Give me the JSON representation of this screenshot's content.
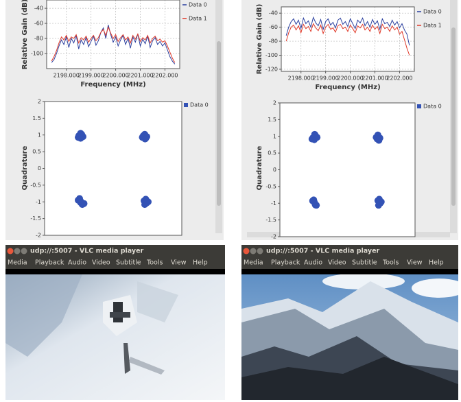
{
  "panels": [
    {
      "spectrum": {
        "type": "line",
        "ylabel": "Relative Gain (dB)",
        "xlabel": "Frequency (MHz)",
        "x": [
          2197.4,
          2197.5,
          2197.6,
          2197.7,
          2197.8,
          2197.9,
          2198.0,
          2198.1,
          2198.2,
          2198.3,
          2198.4,
          2198.5,
          2198.6,
          2198.7,
          2198.8,
          2198.9,
          2199.0,
          2199.1,
          2199.2,
          2199.3,
          2199.4,
          2199.5,
          2199.6,
          2199.7,
          2199.8,
          2199.9,
          2200.0,
          2200.1,
          2200.2,
          2200.3,
          2200.4,
          2200.5,
          2200.6,
          2200.7,
          2200.8,
          2200.9,
          2201.0,
          2201.1,
          2201.2,
          2201.3,
          2201.4,
          2201.5,
          2201.6,
          2201.7,
          2201.8,
          2201.9,
          2202.0,
          2202.1,
          2202.2,
          2202.3,
          2202.4
        ],
        "series": [
          {
            "name": "Data 0",
            "color": "#2a3f9e",
            "values": [
              -112,
              -108,
              -100,
              -90,
              -82,
              -88,
              -78,
              -92,
              -80,
              -86,
              -76,
              -94,
              -82,
              -88,
              -79,
              -91,
              -84,
              -77,
              -89,
              -83,
              -72,
              -66,
              -80,
              -62,
              -75,
              -85,
              -78,
              -90,
              -82,
              -76,
              -88,
              -80,
              -93,
              -78,
              -85,
              -74,
              -90,
              -81,
              -87,
              -77,
              -92,
              -83,
              -79,
              -88,
              -84,
              -90,
              -86,
              -95,
              -104,
              -110,
              -114
            ]
          },
          {
            "name": "Data 1",
            "color": "#e03a2a",
            "values": [
              -110,
              -104,
              -96,
              -86,
              -78,
              -82,
              -76,
              -84,
              -78,
              -80,
              -75,
              -86,
              -79,
              -82,
              -77,
              -85,
              -80,
              -76,
              -83,
              -79,
              -72,
              -68,
              -76,
              -65,
              -73,
              -80,
              -75,
              -84,
              -79,
              -75,
              -82,
              -78,
              -86,
              -76,
              -81,
              -74,
              -84,
              -79,
              -82,
              -76,
              -86,
              -80,
              -77,
              -83,
              -81,
              -85,
              -83,
              -90,
              -98,
              -106,
              -112
            ]
          }
        ],
        "xlim": [
          2197.2,
          2202.6
        ],
        "ylim": [
          -120,
          -29
        ],
        "xticks": [
          {
            "value": 2198,
            "label": "2198.000"
          },
          {
            "value": 2199,
            "label": "2199.000"
          },
          {
            "value": 2200,
            "label": "2200.000"
          },
          {
            "value": 2201,
            "label": "2201.000"
          },
          {
            "value": 2202,
            "label": "2202.000"
          }
        ],
        "yticks": [
          -40,
          -60,
          -80,
          -100
        ],
        "grid": true
      },
      "constellation": {
        "type": "scatter",
        "ylabel": "Quadrature",
        "series": [
          {
            "name": "Data 0",
            "color": "#3352b5",
            "x": [
              -1.0,
              -0.92,
              -0.95,
              -0.88,
              -1.02,
              -0.95,
              0.88,
              0.95,
              0.92,
              0.98,
              0.85,
              0.93,
              -1.02,
              -0.95,
              -0.9,
              -0.98,
              -0.85,
              -0.95,
              0.9,
              0.98,
              0.95,
              1.02,
              0.92,
              0.96
            ],
            "y": [
              0.98,
              1.02,
              0.9,
              0.95,
              0.93,
              1.05,
              0.98,
              0.9,
              1.02,
              0.95,
              0.93,
              0.88,
              -0.95,
              -1.02,
              -1.08,
              -0.9,
              -1.05,
              -0.98,
              -0.97,
              -1.03,
              -0.92,
              -1.0,
              -1.08,
              -0.95
            ]
          }
        ],
        "xlim": [
          -2,
          2
        ],
        "ylim": [
          -2,
          2
        ],
        "yticks": [
          2,
          1.5,
          1,
          0.5,
          0,
          -0.5,
          -1,
          -1.5,
          -2
        ]
      },
      "vlc": {
        "title": "udp://:5007 - VLC media player",
        "menu": [
          "Media",
          "Playback",
          "Audio",
          "Video",
          "Subtitle",
          "Tools",
          "View",
          "Help"
        ]
      }
    },
    {
      "spectrum": {
        "type": "line",
        "ylabel": "Relative Gain (dB)",
        "xlabel": "Frequency (MHz)",
        "x": [
          2197.4,
          2197.5,
          2197.6,
          2197.7,
          2197.8,
          2197.9,
          2198.0,
          2198.1,
          2198.2,
          2198.3,
          2198.4,
          2198.5,
          2198.6,
          2198.7,
          2198.8,
          2198.9,
          2199.0,
          2199.1,
          2199.2,
          2199.3,
          2199.4,
          2199.5,
          2199.6,
          2199.7,
          2199.8,
          2199.9,
          2200.0,
          2200.1,
          2200.2,
          2200.3,
          2200.4,
          2200.5,
          2200.6,
          2200.7,
          2200.8,
          2200.9,
          2201.0,
          2201.1,
          2201.2,
          2201.3,
          2201.4,
          2201.5,
          2201.6,
          2201.7,
          2201.8,
          2201.9,
          2202.0,
          2202.1,
          2202.2,
          2202.3,
          2202.4
        ],
        "series": [
          {
            "name": "Data 0",
            "color": "#2a3f9e",
            "values": [
              -72,
              -60,
              -52,
              -48,
              -56,
              -50,
              -62,
              -47,
              -55,
              -51,
              -60,
              -46,
              -54,
              -58,
              -49,
              -63,
              -52,
              -48,
              -57,
              -53,
              -61,
              -50,
              -47,
              -56,
              -52,
              -59,
              -48,
              -55,
              -62,
              -50,
              -54,
              -47,
              -58,
              -52,
              -60,
              -49,
              -56,
              -51,
              -63,
              -48,
              -55,
              -53,
              -59,
              -50,
              -57,
              -52,
              -61,
              -55,
              -64,
              -70,
              -86
            ]
          },
          {
            "name": "Data 1",
            "color": "#e03a2a",
            "values": [
              -80,
              -68,
              -60,
              -57,
              -64,
              -58,
              -68,
              -56,
              -62,
              -59,
              -66,
              -55,
              -61,
              -65,
              -57,
              -69,
              -60,
              -56,
              -63,
              -61,
              -67,
              -58,
              -56,
              -62,
              -60,
              -66,
              -57,
              -62,
              -68,
              -58,
              -61,
              -56,
              -64,
              -60,
              -66,
              -57,
              -63,
              -59,
              -69,
              -56,
              -62,
              -60,
              -66,
              -58,
              -64,
              -60,
              -70,
              -66,
              -78,
              -90,
              -100
            ]
          }
        ],
        "xlim": [
          2197.2,
          2202.6
        ],
        "ylim": [
          -123,
          -31
        ],
        "xticks": [
          {
            "value": 2198,
            "label": "2198.000"
          },
          {
            "value": 2199,
            "label": "2199.000"
          },
          {
            "value": 2200,
            "label": "2200.000"
          },
          {
            "value": 2201,
            "label": "2201.000"
          },
          {
            "value": 2202,
            "label": "2202.000"
          }
        ],
        "yticks": [
          -40,
          -60,
          -80,
          -100,
          -120
        ],
        "grid": true
      },
      "constellation": {
        "type": "scatter",
        "ylabel": "Quadrature",
        "series": [
          {
            "name": "Data 0",
            "color": "#3352b5",
            "x": [
              -1.02,
              -0.95,
              -0.98,
              -0.9,
              -1.05,
              -0.97,
              0.85,
              0.92,
              0.9,
              0.96,
              0.88,
              0.93,
              -1.03,
              -0.96,
              -0.92,
              -1.0,
              -0.95,
              -0.98,
              0.9,
              0.97,
              0.94,
              1.0,
              0.92,
              0.96
            ],
            "y": [
              0.96,
              1.03,
              0.9,
              0.97,
              0.92,
              1.06,
              0.97,
              0.9,
              1.04,
              0.95,
              0.92,
              0.88,
              -0.93,
              -1.02,
              -1.06,
              -0.9,
              -1.05,
              -0.97,
              -0.92,
              -1.0,
              -0.88,
              -0.96,
              -1.06,
              -0.94
            ]
          }
        ],
        "xlim": [
          -2,
          2
        ],
        "ylim": [
          -2,
          2
        ],
        "yticks": [
          2,
          1.5,
          1,
          0.5,
          0,
          -0.5,
          -1,
          -1.5,
          -2
        ]
      },
      "vlc": {
        "title": "udp://:5007 - VLC media player",
        "menu": [
          "Media",
          "Playback",
          "Audio",
          "Video",
          "Subtitle",
          "Tools",
          "View",
          "Help"
        ]
      }
    }
  ]
}
